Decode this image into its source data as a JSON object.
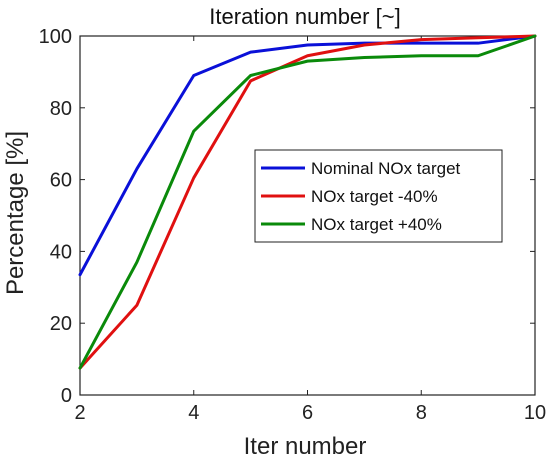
{
  "chart_data": {
    "type": "line",
    "title": "Iteration number [~]",
    "xlabel": "Iter number",
    "ylabel": "Percentage [%]",
    "xlim": [
      2,
      10
    ],
    "ylim": [
      0,
      100
    ],
    "xticks": [
      2,
      4,
      6,
      8,
      10
    ],
    "yticks": [
      0,
      20,
      40,
      60,
      80,
      100
    ],
    "grid": false,
    "legend_position": "center-right",
    "x": [
      2,
      3,
      4,
      5,
      6,
      7,
      8,
      9,
      10
    ],
    "series": [
      {
        "name": "Nominal NOx target",
        "color": "#0a10d8",
        "values": [
          33.5,
          63,
          89,
          95.5,
          97.5,
          98,
          98,
          98,
          100
        ]
      },
      {
        "name": "NOx target -40%",
        "color": "#e01010",
        "values": [
          7.5,
          25,
          60.5,
          87.5,
          94.5,
          97.5,
          99,
          99.5,
          100
        ]
      },
      {
        "name": "NOx target +40%",
        "color": "#0a8a0a",
        "values": [
          7.5,
          37,
          73.5,
          89,
          93,
          94,
          94.5,
          94.5,
          100
        ]
      }
    ]
  }
}
